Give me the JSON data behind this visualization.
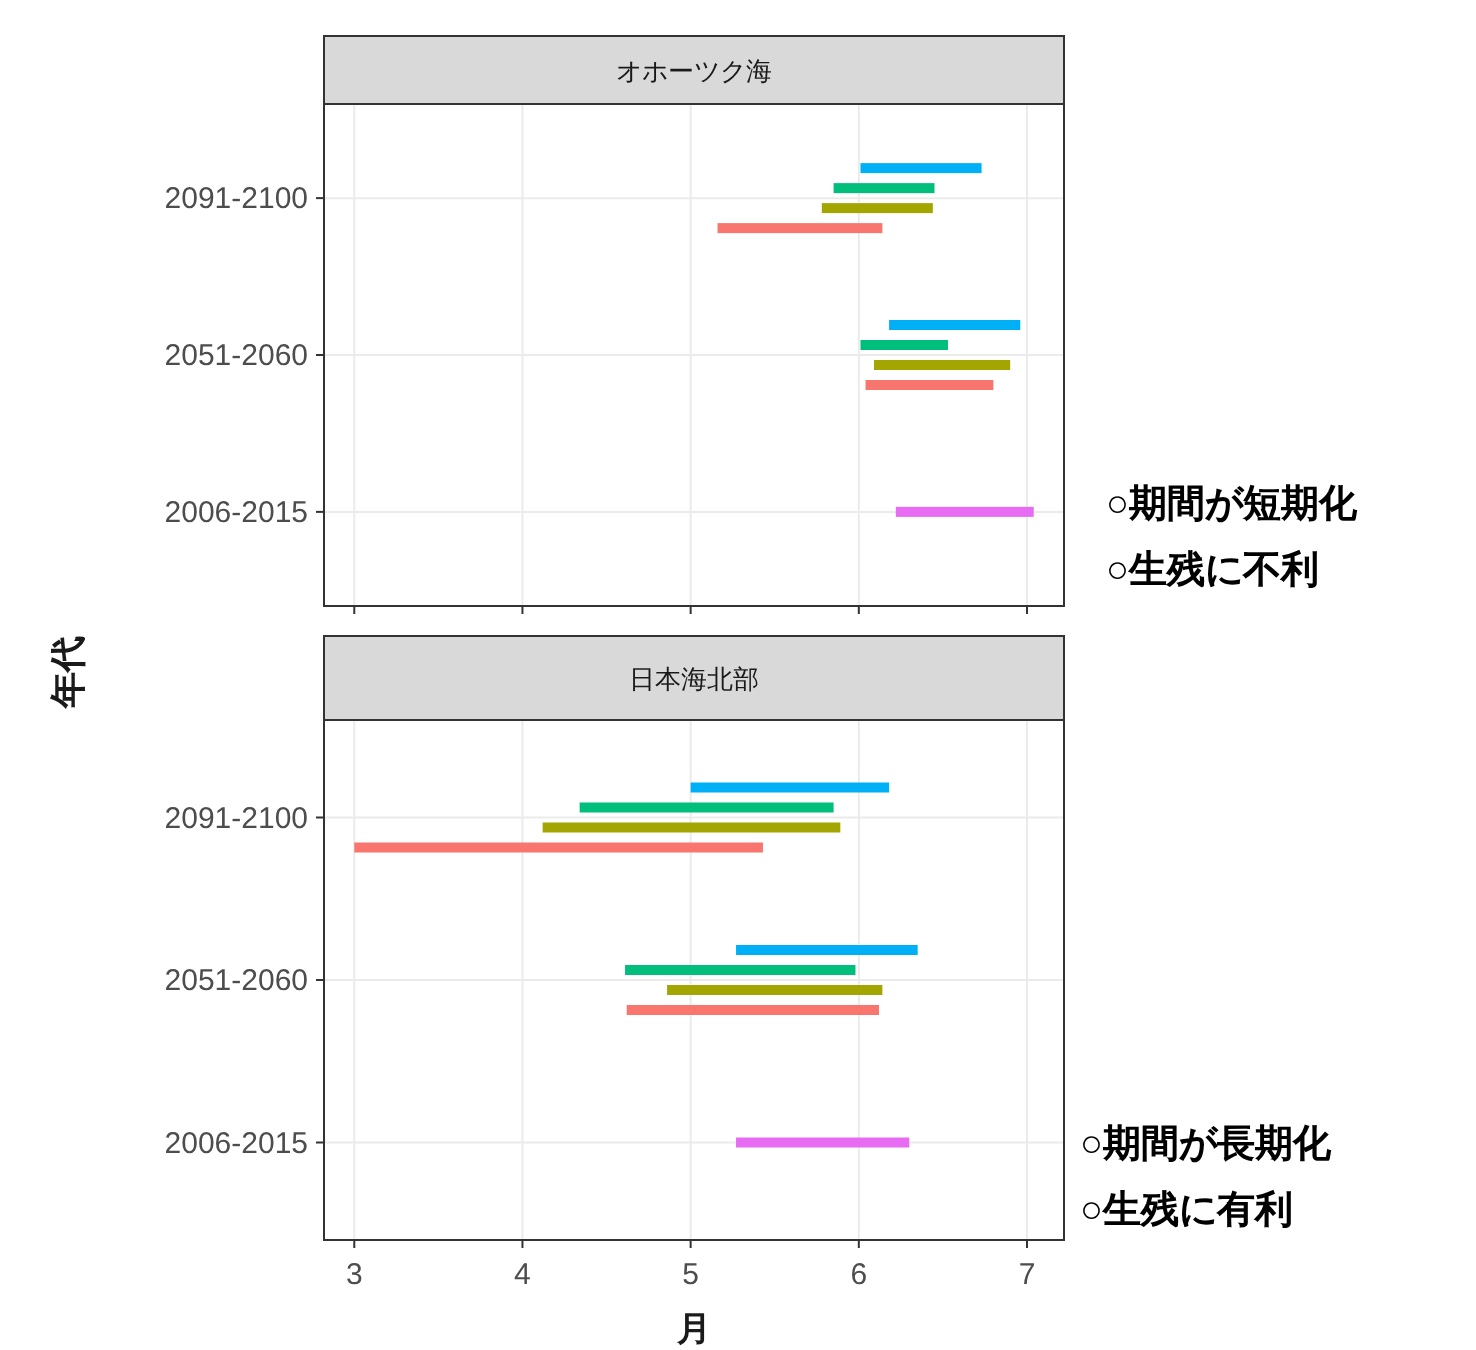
{
  "chart_data": [
    {
      "type": "bar",
      "orientation": "horizontal",
      "title": "オホーツク海",
      "ylabel": "年代",
      "categories": [
        "2091-2100",
        "2051-2060",
        "2006-2015"
      ],
      "series": [
        {
          "color": "#f8766d",
          "base": [
            5.16,
            6.04,
            null
          ],
          "values": [
            0.98,
            0.76,
            null
          ]
        },
        {
          "color": "#a3a500",
          "base": [
            5.78,
            6.09,
            null
          ],
          "values": [
            0.66,
            0.81,
            null
          ]
        },
        {
          "color": "#00bf7d",
          "base": [
            5.85,
            6.01,
            null
          ],
          "values": [
            0.6,
            0.52,
            null
          ]
        },
        {
          "color": "#00b0f6",
          "base": [
            6.01,
            6.18,
            null
          ],
          "values": [
            0.72,
            0.78,
            null
          ]
        },
        {
          "color": "#e76bf3",
          "base": [
            null,
            null,
            6.22
          ],
          "values": [
            null,
            null,
            0.82
          ]
        }
      ],
      "xlim": [
        2.82,
        7.22
      ],
      "xticks": [
        3,
        4,
        5,
        6,
        7
      ],
      "grid": true,
      "tick_labels": "y",
      "annotations": [
        "○期間が短期化",
        "○生残に不利"
      ]
    },
    {
      "type": "bar",
      "orientation": "horizontal",
      "title": "日本海北部",
      "xlabel": "月",
      "categories": [
        "2091-2100",
        "2051-2060",
        "2006-2015"
      ],
      "series": [
        {
          "color": "#f8766d",
          "base": [
            3.0,
            4.62,
            null
          ],
          "values": [
            2.43,
            1.5,
            null
          ]
        },
        {
          "color": "#a3a500",
          "base": [
            4.12,
            4.86,
            null
          ],
          "values": [
            1.77,
            1.28,
            null
          ]
        },
        {
          "color": "#00bf7d",
          "base": [
            4.34,
            4.61,
            null
          ],
          "values": [
            1.51,
            1.37,
            null
          ]
        },
        {
          "color": "#00b0f6",
          "base": [
            5.0,
            5.27,
            null
          ],
          "values": [
            1.18,
            1.08,
            null
          ]
        },
        {
          "color": "#e76bf3",
          "base": [
            null,
            null,
            5.27
          ],
          "values": [
            null,
            null,
            1.03
          ]
        }
      ],
      "xlim": [
        2.82,
        7.22
      ],
      "xticks": [
        3,
        4,
        5,
        6,
        7
      ],
      "grid": true,
      "annotations": [
        "○期間が長期化",
        "○生残に有利"
      ]
    }
  ]
}
